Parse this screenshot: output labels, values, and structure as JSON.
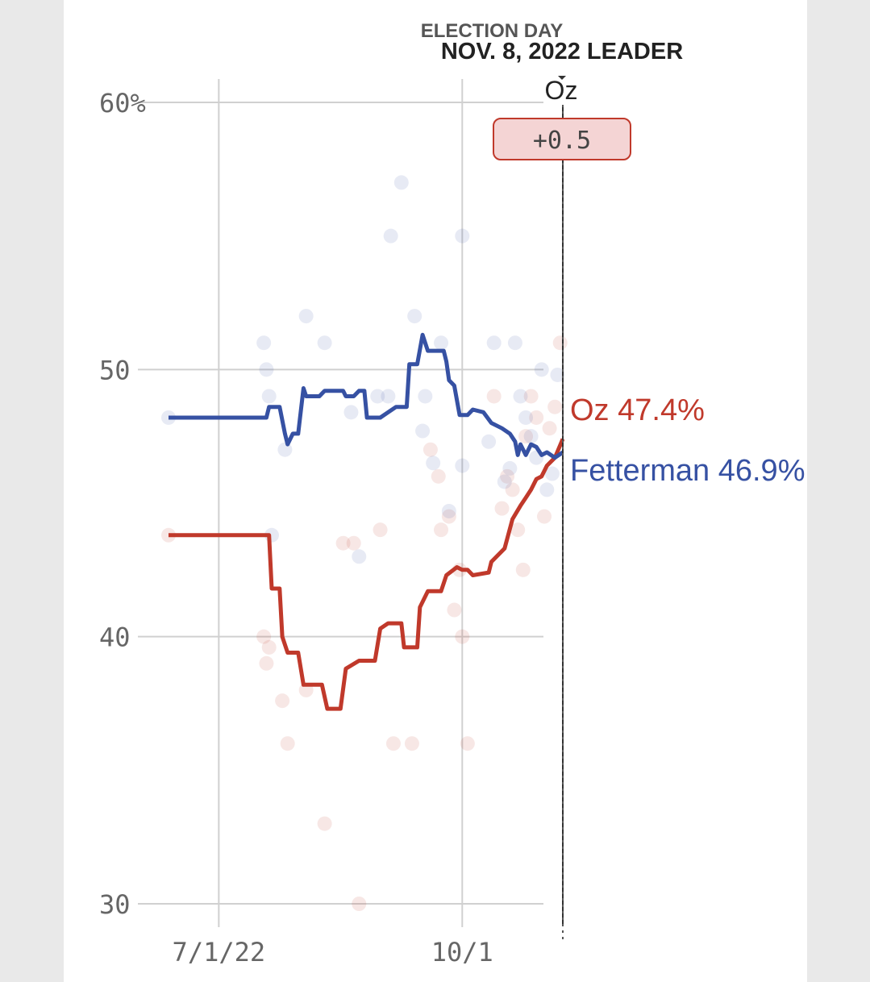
{
  "chart_data": {
    "type": "line",
    "y_axis": {
      "range": [
        30,
        60
      ],
      "ticks": [
        {
          "value": 60,
          "label": "60%"
        },
        {
          "value": 50,
          "label": "50"
        },
        {
          "value": 40,
          "label": "40"
        },
        {
          "value": 30,
          "label": "30"
        }
      ],
      "grid": true
    },
    "x_axis": {
      "range": [
        "2022-06-12",
        "2022-11-08"
      ],
      "ticks": [
        {
          "date": "2022-07-01",
          "label": "7/1/22"
        },
        {
          "date": "2022-10-01",
          "label": "10/1"
        }
      ],
      "grid": true
    },
    "election_day": {
      "date": "2022-11-08",
      "label_line1": "ELECTION DAY",
      "label_line2": "NOV. 8, 2022 LEADER",
      "leader": "Oz",
      "margin": "+0.5",
      "badge_color": "#f4d4d4",
      "badge_border": "#c0392b"
    },
    "series": [
      {
        "name": "Oz",
        "color": "#c0392b",
        "end_label": "Oz 47.4%",
        "points": [
          [
            "2022-06-12",
            43.8
          ],
          [
            "2022-07-20",
            43.8
          ],
          [
            "2022-07-21",
            41.8
          ],
          [
            "2022-07-24",
            41.8
          ],
          [
            "2022-07-25",
            40.0
          ],
          [
            "2022-07-27",
            39.4
          ],
          [
            "2022-07-31",
            39.4
          ],
          [
            "2022-08-02",
            38.2
          ],
          [
            "2022-08-09",
            38.2
          ],
          [
            "2022-08-11",
            37.3
          ],
          [
            "2022-08-16",
            37.3
          ],
          [
            "2022-08-18",
            38.8
          ],
          [
            "2022-08-23",
            39.1
          ],
          [
            "2022-08-29",
            39.1
          ],
          [
            "2022-08-31",
            40.3
          ],
          [
            "2022-09-03",
            40.5
          ],
          [
            "2022-09-08",
            40.5
          ],
          [
            "2022-09-09",
            39.6
          ],
          [
            "2022-09-14",
            39.6
          ],
          [
            "2022-09-15",
            41.1
          ],
          [
            "2022-09-18",
            41.7
          ],
          [
            "2022-09-23",
            41.7
          ],
          [
            "2022-09-25",
            42.3
          ],
          [
            "2022-09-29",
            42.6
          ],
          [
            "2022-10-01",
            42.5
          ],
          [
            "2022-10-03",
            42.5
          ],
          [
            "2022-10-05",
            42.3
          ],
          [
            "2022-10-11",
            42.4
          ],
          [
            "2022-10-12",
            42.8
          ],
          [
            "2022-10-17",
            43.3
          ],
          [
            "2022-10-20",
            44.4
          ],
          [
            "2022-10-23",
            44.9
          ],
          [
            "2022-10-25",
            45.2
          ],
          [
            "2022-10-27",
            45.5
          ],
          [
            "2022-10-29",
            45.9
          ],
          [
            "2022-10-31",
            46.0
          ],
          [
            "2022-11-02",
            46.4
          ],
          [
            "2022-11-05",
            46.7
          ],
          [
            "2022-11-08",
            47.4
          ]
        ],
        "polls": [
          [
            "2022-06-12",
            43.8
          ],
          [
            "2022-07-18",
            40.0
          ],
          [
            "2022-07-19",
            39.0
          ],
          [
            "2022-07-20",
            39.6
          ],
          [
            "2022-07-25",
            37.6
          ],
          [
            "2022-07-27",
            36.0
          ],
          [
            "2022-08-03",
            38.0
          ],
          [
            "2022-08-10",
            33.0
          ],
          [
            "2022-08-17",
            43.5
          ],
          [
            "2022-08-21",
            43.5
          ],
          [
            "2022-08-23",
            30.0
          ],
          [
            "2022-08-31",
            44.0
          ],
          [
            "2022-09-05",
            36.0
          ],
          [
            "2022-09-12",
            36.0
          ],
          [
            "2022-09-19",
            47.0
          ],
          [
            "2022-09-22",
            46.0
          ],
          [
            "2022-09-23",
            44.0
          ],
          [
            "2022-09-26",
            44.5
          ],
          [
            "2022-09-28",
            41.0
          ],
          [
            "2022-09-30",
            42.5
          ],
          [
            "2022-10-01",
            40.0
          ],
          [
            "2022-10-03",
            36.0
          ],
          [
            "2022-10-13",
            49.0
          ],
          [
            "2022-10-16",
            44.8
          ],
          [
            "2022-10-18",
            46.0
          ],
          [
            "2022-10-20",
            45.5
          ],
          [
            "2022-10-22",
            44.0
          ],
          [
            "2022-10-24",
            42.5
          ],
          [
            "2022-10-25",
            47.5
          ],
          [
            "2022-10-27",
            49.0
          ],
          [
            "2022-10-29",
            48.2
          ],
          [
            "2022-11-01",
            44.5
          ],
          [
            "2022-11-03",
            47.8
          ],
          [
            "2022-11-05",
            48.6
          ],
          [
            "2022-11-07",
            51.0
          ]
        ]
      },
      {
        "name": "Fetterman",
        "color": "#3651a3",
        "end_label": "Fetterman 46.9%",
        "points": [
          [
            "2022-06-12",
            48.2
          ],
          [
            "2022-07-19",
            48.2
          ],
          [
            "2022-07-20",
            48.6
          ],
          [
            "2022-07-24",
            48.6
          ],
          [
            "2022-07-26",
            47.6
          ],
          [
            "2022-07-27",
            47.2
          ],
          [
            "2022-07-29",
            47.6
          ],
          [
            "2022-07-31",
            47.6
          ],
          [
            "2022-08-02",
            49.3
          ],
          [
            "2022-08-03",
            49.0
          ],
          [
            "2022-08-08",
            49.0
          ],
          [
            "2022-08-10",
            49.2
          ],
          [
            "2022-08-17",
            49.2
          ],
          [
            "2022-08-18",
            49.0
          ],
          [
            "2022-08-21",
            49.0
          ],
          [
            "2022-08-23",
            49.2
          ],
          [
            "2022-08-25",
            49.2
          ],
          [
            "2022-08-26",
            48.2
          ],
          [
            "2022-08-31",
            48.2
          ],
          [
            "2022-09-03",
            48.4
          ],
          [
            "2022-09-06",
            48.6
          ],
          [
            "2022-09-10",
            48.6
          ],
          [
            "2022-09-11",
            50.2
          ],
          [
            "2022-09-14",
            50.2
          ],
          [
            "2022-09-16",
            51.3
          ],
          [
            "2022-09-18",
            50.7
          ],
          [
            "2022-09-24",
            50.7
          ],
          [
            "2022-09-25",
            50.3
          ],
          [
            "2022-09-26",
            49.6
          ],
          [
            "2022-09-28",
            49.4
          ],
          [
            "2022-09-30",
            48.3
          ],
          [
            "2022-10-03",
            48.3
          ],
          [
            "2022-10-05",
            48.5
          ],
          [
            "2022-10-09",
            48.4
          ],
          [
            "2022-10-12",
            48.0
          ],
          [
            "2022-10-16",
            47.8
          ],
          [
            "2022-10-19",
            47.6
          ],
          [
            "2022-10-21",
            47.3
          ],
          [
            "2022-10-22",
            46.8
          ],
          [
            "2022-10-23",
            47.2
          ],
          [
            "2022-10-25",
            46.8
          ],
          [
            "2022-10-27",
            47.2
          ],
          [
            "2022-10-29",
            47.1
          ],
          [
            "2022-10-31",
            46.8
          ],
          [
            "2022-11-02",
            46.9
          ],
          [
            "2022-11-05",
            46.7
          ],
          [
            "2022-11-08",
            46.9
          ]
        ],
        "polls": [
          [
            "2022-06-12",
            48.2
          ],
          [
            "2022-07-18",
            51.0
          ],
          [
            "2022-07-19",
            50.0
          ],
          [
            "2022-07-20",
            49.0
          ],
          [
            "2022-07-26",
            47.0
          ],
          [
            "2022-07-21",
            43.8
          ],
          [
            "2022-08-03",
            52.0
          ],
          [
            "2022-08-10",
            51.0
          ],
          [
            "2022-08-20",
            48.4
          ],
          [
            "2022-08-23",
            43.0
          ],
          [
            "2022-08-30",
            49.0
          ],
          [
            "2022-09-03",
            49.0
          ],
          [
            "2022-09-04",
            55.0
          ],
          [
            "2022-09-08",
            57.0
          ],
          [
            "2022-09-13",
            52.0
          ],
          [
            "2022-09-16",
            47.7
          ],
          [
            "2022-09-17",
            49.0
          ],
          [
            "2022-09-20",
            46.5
          ],
          [
            "2022-09-23",
            51.0
          ],
          [
            "2022-09-26",
            44.7
          ],
          [
            "2022-10-01",
            55.0
          ],
          [
            "2022-10-01",
            46.4
          ],
          [
            "2022-10-11",
            47.3
          ],
          [
            "2022-10-13",
            51.0
          ],
          [
            "2022-10-17",
            45.8
          ],
          [
            "2022-10-19",
            46.3
          ],
          [
            "2022-10-21",
            51.0
          ],
          [
            "2022-10-23",
            49.0
          ],
          [
            "2022-10-25",
            48.2
          ],
          [
            "2022-10-27",
            47.5
          ],
          [
            "2022-10-29",
            46.7
          ],
          [
            "2022-10-31",
            50.0
          ],
          [
            "2022-11-02",
            45.5
          ],
          [
            "2022-11-04",
            46.1
          ],
          [
            "2022-11-06",
            49.8
          ]
        ]
      }
    ]
  }
}
